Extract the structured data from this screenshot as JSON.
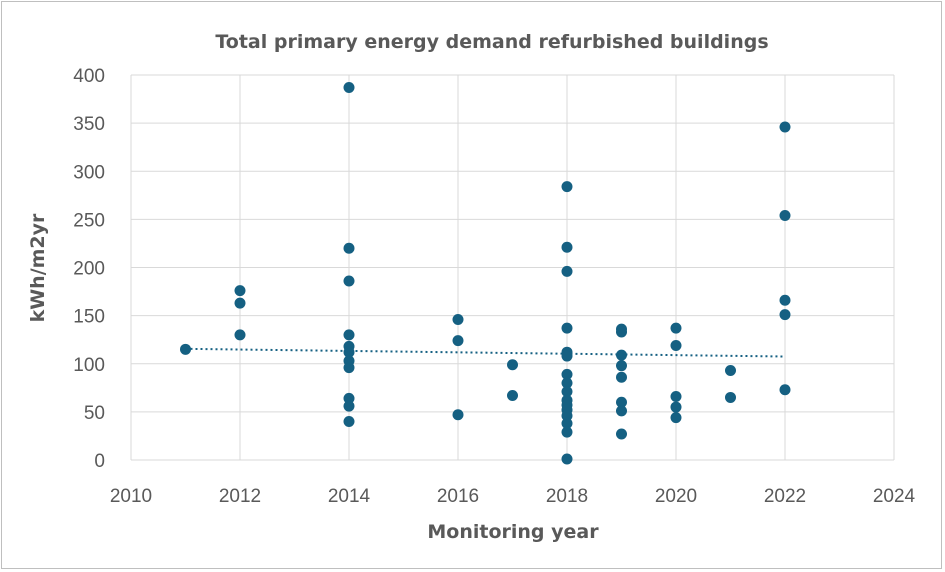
{
  "chart_data": {
    "type": "scatter",
    "title": "Total primary energy demand refurbished buildings",
    "xlabel": "Monitoring year",
    "ylabel": "kWh/m2yr",
    "xlim": [
      2010,
      2024
    ],
    "ylim": [
      0,
      400
    ],
    "xticks": [
      2010,
      2012,
      2014,
      2016,
      2018,
      2020,
      2022,
      2024
    ],
    "yticks": [
      0,
      50,
      100,
      150,
      200,
      250,
      300,
      350,
      400
    ],
    "grid": true,
    "point_color": "#156082",
    "series": [
      {
        "name": "Total primary energy demand",
        "points": [
          [
            2011,
            115
          ],
          [
            2012,
            176
          ],
          [
            2012,
            163
          ],
          [
            2012,
            130
          ],
          [
            2014,
            387
          ],
          [
            2014,
            220
          ],
          [
            2014,
            186
          ],
          [
            2014,
            130
          ],
          [
            2014,
            118
          ],
          [
            2014,
            112
          ],
          [
            2014,
            103
          ],
          [
            2014,
            96
          ],
          [
            2014,
            64
          ],
          [
            2014,
            56
          ],
          [
            2014,
            40
          ],
          [
            2016,
            146
          ],
          [
            2016,
            124
          ],
          [
            2016,
            47
          ],
          [
            2017,
            99
          ],
          [
            2017,
            67
          ],
          [
            2018,
            284
          ],
          [
            2018,
            221
          ],
          [
            2018,
            196
          ],
          [
            2018,
            137
          ],
          [
            2018,
            112
          ],
          [
            2018,
            108
          ],
          [
            2018,
            89
          ],
          [
            2018,
            80
          ],
          [
            2018,
            71
          ],
          [
            2018,
            62
          ],
          [
            2018,
            57
          ],
          [
            2018,
            52
          ],
          [
            2018,
            46
          ],
          [
            2018,
            38
          ],
          [
            2018,
            29
          ],
          [
            2018,
            1
          ],
          [
            2019,
            136
          ],
          [
            2019,
            133
          ],
          [
            2019,
            109
          ],
          [
            2019,
            98
          ],
          [
            2019,
            86
          ],
          [
            2019,
            60
          ],
          [
            2019,
            51
          ],
          [
            2019,
            27
          ],
          [
            2020,
            137
          ],
          [
            2020,
            119
          ],
          [
            2020,
            66
          ],
          [
            2020,
            55
          ],
          [
            2020,
            44
          ],
          [
            2021,
            93
          ],
          [
            2021,
            65
          ],
          [
            2022,
            346
          ],
          [
            2022,
            254
          ],
          [
            2022,
            166
          ],
          [
            2022,
            151
          ],
          [
            2022,
            73
          ]
        ]
      }
    ],
    "trendline": {
      "type": "linear",
      "style": "dotted",
      "x": [
        2011,
        2022
      ],
      "y": [
        115.5,
        107.5
      ]
    }
  }
}
